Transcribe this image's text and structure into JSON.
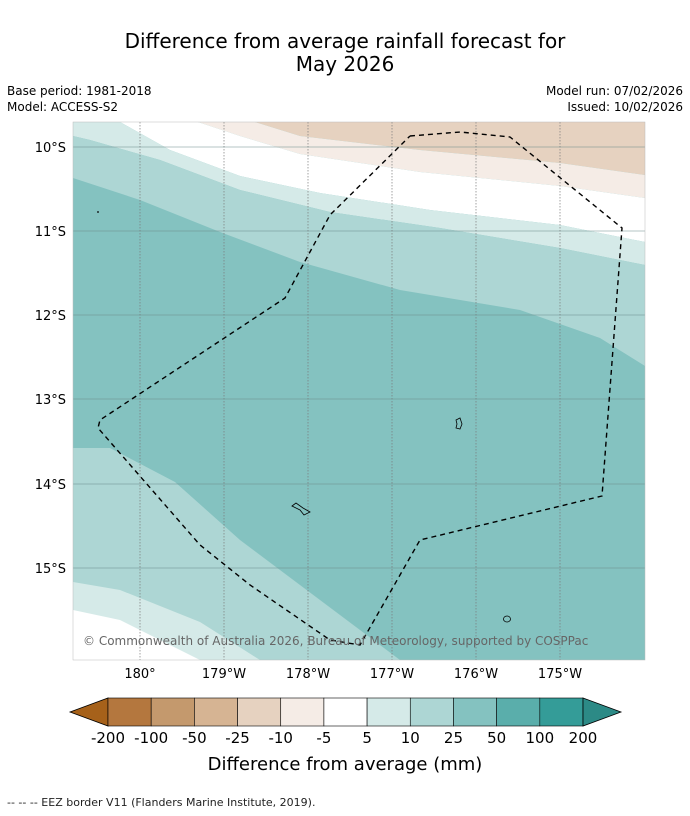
{
  "title": {
    "line1": "Difference from average rainfall forecast for",
    "line2": "May 2026"
  },
  "meta": {
    "base_period": "Base period: 1981-2018",
    "model": "Model: ACCESS-S2",
    "model_run": "Model run: 07/02/2026",
    "issued": "Issued: 10/02/2026"
  },
  "map": {
    "lat_labels": [
      "10°S",
      "11°S",
      "12°S",
      "13°S",
      "14°S",
      "15°S"
    ],
    "lon_labels": [
      "180°",
      "179°W",
      "178°W",
      "177°W",
      "176°W",
      "175°W"
    ],
    "copyright": "© Commonwealth of Australia 2026, Bureau of Meteorology, supported by COSPPac"
  },
  "legend": {
    "ticks": [
      "-200",
      "-100",
      "-50",
      "-25",
      "-10",
      "-5",
      "5",
      "10",
      "25",
      "50",
      "100",
      "200"
    ],
    "colors": [
      "#a6611a",
      "#b4773e",
      "#c4996d",
      "#d6b493",
      "#e6d2c0",
      "#f5ece6",
      "#ffffff",
      "#d5eae8",
      "#add6d4",
      "#84c2c0",
      "#5aaeab",
      "#349c98",
      "#2c8a86"
    ],
    "label": "Difference from average (mm)"
  },
  "footer": "--  --  -- EEZ border V11 (Flanders Marine Institute, 2019)."
}
